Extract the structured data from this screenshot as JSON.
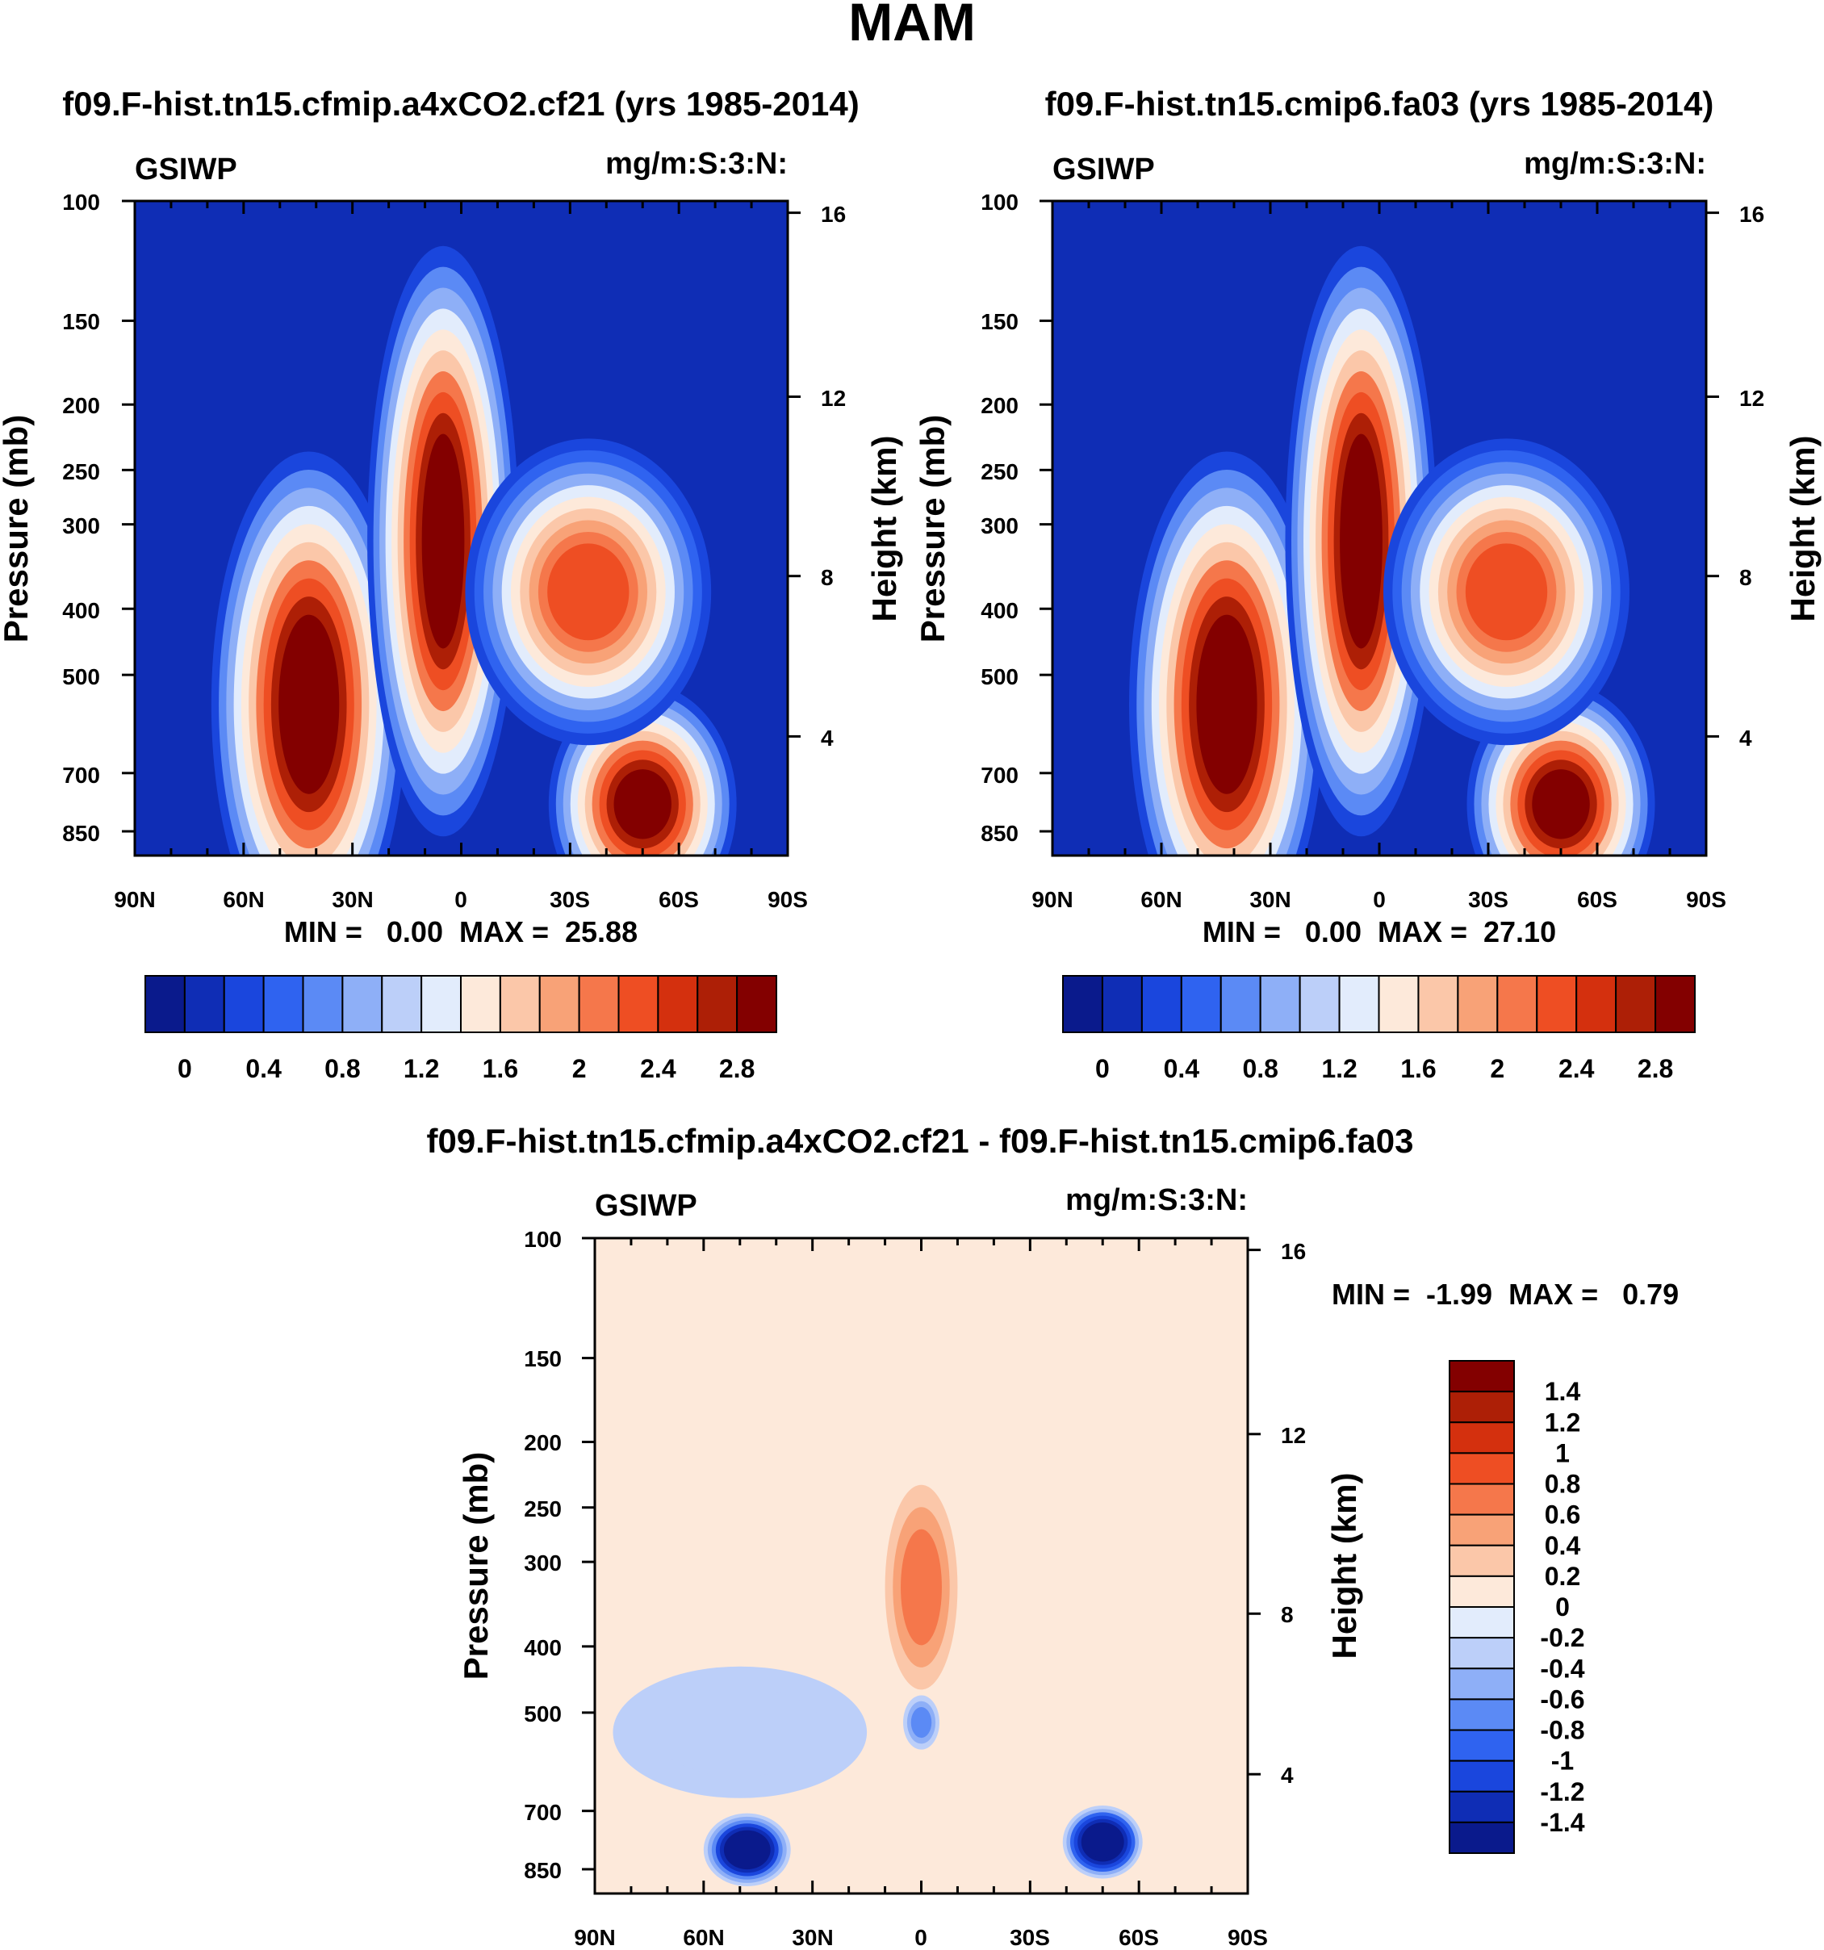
{
  "page_title": "MAM",
  "chart_data": [
    {
      "type": "heatmap",
      "title": "f09.F-hist.tn15.cfmip.a4xCO2.cf21 (yrs 1985-2014)",
      "left_label": "GSIWP",
      "right_label": "mg/m:S:3:N:",
      "ylabel": "Pressure (mb)",
      "ylabel_right": "Height (km)",
      "x_ticks": [
        "90N",
        "60N",
        "30N",
        "0",
        "30S",
        "60S",
        "90S"
      ],
      "y_ticks": [
        "100",
        "150",
        "200",
        "250",
        "300",
        "400",
        "500",
        "700",
        "850"
      ],
      "y_ticks_right": [
        "16",
        "12",
        "8",
        "4"
      ],
      "xlim": [
        90,
        -90
      ],
      "ylim": [
        100,
        1000
      ],
      "stats": "MIN =   0.00  MAX =  25.88",
      "min": 0.0,
      "max": 25.88,
      "colorbar": {
        "levels": [
          "0",
          "0.4",
          "0.8",
          "1.2",
          "1.6",
          "2",
          "2.4",
          "2.8"
        ],
        "colors": [
          "#0a1a8c",
          "#0f2db5",
          "#1a46dd",
          "#2f63f0",
          "#5b8af5",
          "#8eaff7",
          "#bccff9",
          "#e2ecfc",
          "#fde9da",
          "#fbc7a9",
          "#f8a277",
          "#f5774b",
          "#ee4e23",
          "#d4300e",
          "#ad1f06",
          "#830000"
        ]
      },
      "blobs": [
        {
          "lat": 42,
          "p": 560,
          "rlat": 18,
          "rp": 340,
          "value": 14
        },
        {
          "lat": 5,
          "p": 320,
          "rlat": 12,
          "rp": 220,
          "value": 16
        },
        {
          "lat": -50,
          "p": 780,
          "rlat": 17,
          "rp": 210,
          "value": 13
        },
        {
          "lat": -35,
          "p": 380,
          "rlat": 25,
          "rp": 130,
          "value": 2.2
        }
      ]
    },
    {
      "type": "heatmap",
      "title": "f09.F-hist.tn15.cmip6.fa03 (yrs 1985-2014)",
      "left_label": "GSIWP",
      "right_label": "mg/m:S:3:N:",
      "ylabel": "Pressure (mb)",
      "ylabel_right": "Height (km)",
      "x_ticks": [
        "90N",
        "60N",
        "30N",
        "0",
        "30S",
        "60S",
        "90S"
      ],
      "y_ticks": [
        "100",
        "150",
        "200",
        "250",
        "300",
        "400",
        "500",
        "700",
        "850"
      ],
      "y_ticks_right": [
        "16",
        "12",
        "8",
        "4"
      ],
      "xlim": [
        90,
        -90
      ],
      "ylim": [
        100,
        1000
      ],
      "stats": "MIN =   0.00  MAX =  27.10",
      "min": 0.0,
      "max": 27.1,
      "colorbar": {
        "levels": [
          "0",
          "0.4",
          "0.8",
          "1.2",
          "1.6",
          "2",
          "2.4",
          "2.8"
        ],
        "colors": [
          "#0a1a8c",
          "#0f2db5",
          "#1a46dd",
          "#2f63f0",
          "#5b8af5",
          "#8eaff7",
          "#bccff9",
          "#e2ecfc",
          "#fde9da",
          "#fbc7a9",
          "#f8a277",
          "#f5774b",
          "#ee4e23",
          "#d4300e",
          "#ad1f06",
          "#830000"
        ]
      },
      "blobs": [
        {
          "lat": 42,
          "p": 560,
          "rlat": 18,
          "rp": 340,
          "value": 14
        },
        {
          "lat": 5,
          "p": 320,
          "rlat": 12,
          "rp": 220,
          "value": 16
        },
        {
          "lat": -50,
          "p": 780,
          "rlat": 17,
          "rp": 210,
          "value": 14
        },
        {
          "lat": -35,
          "p": 380,
          "rlat": 25,
          "rp": 130,
          "value": 2.3
        }
      ]
    },
    {
      "type": "heatmap",
      "title": "f09.F-hist.tn15.cfmip.a4xCO2.cf21 - f09.F-hist.tn15.cmip6.fa03",
      "left_label": "GSIWP",
      "right_label": "mg/m:S:3:N:",
      "ylabel": "Pressure (mb)",
      "ylabel_right": "Height (km)",
      "x_ticks": [
        "90N",
        "60N",
        "30N",
        "0",
        "30S",
        "60S",
        "90S"
      ],
      "y_ticks": [
        "100",
        "150",
        "200",
        "250",
        "300",
        "400",
        "500",
        "700",
        "850"
      ],
      "y_ticks_right": [
        "16",
        "12",
        "8",
        "4"
      ],
      "xlim": [
        90,
        -90
      ],
      "ylim": [
        100,
        1000
      ],
      "stats": "MIN =  -1.99  MAX =   0.79",
      "min": -1.99,
      "max": 0.79,
      "colorbar": {
        "levels": [
          "1.4",
          "1.2",
          "1",
          "0.8",
          "0.6",
          "0.4",
          "0.2",
          "0",
          "-0.2",
          "-0.4",
          "-0.6",
          "-0.8",
          "-1",
          "-1.2",
          "-1.4"
        ],
        "colors": [
          "#830000",
          "#ad1f06",
          "#d4300e",
          "#ee4e23",
          "#f5774b",
          "#f8a277",
          "#fbc7a9",
          "#fde9da",
          "#e2ecfc",
          "#bccff9",
          "#8eaff7",
          "#5b8af5",
          "#2f63f0",
          "#1a46dd",
          "#0f2db5",
          "#0a1a8c"
        ]
      },
      "blobs": [
        {
          "lat": 48,
          "p": 800,
          "rlat": 12,
          "rp": 110,
          "value": -1.6
        },
        {
          "lat": -50,
          "p": 780,
          "rlat": 11,
          "rp": 100,
          "value": -1.7
        },
        {
          "lat": 0,
          "p": 330,
          "rlat": 10,
          "rp": 110,
          "value": 0.6
        },
        {
          "lat": 0,
          "p": 520,
          "rlat": 5,
          "rp": 50,
          "value": -0.6
        },
        {
          "lat": 50,
          "p": 540,
          "rlat": 35,
          "rp": 120,
          "value": -0.3
        }
      ]
    }
  ]
}
